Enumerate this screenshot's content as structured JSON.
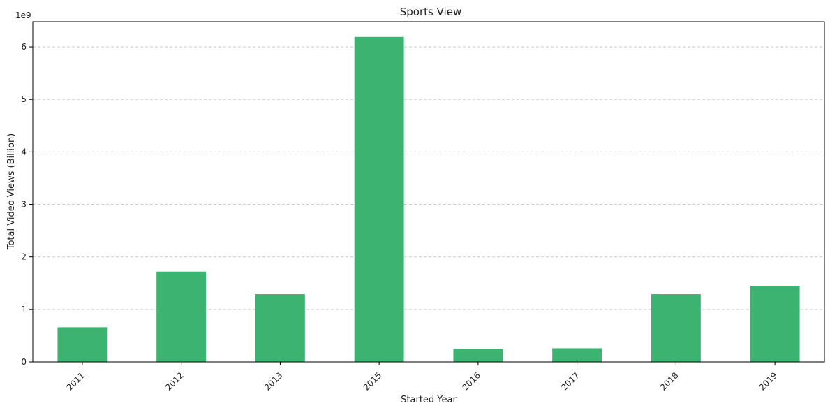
{
  "chart_data": {
    "type": "bar",
    "title": "Sports View",
    "xlabel": "Started Year",
    "ylabel": "Total Video Views (Billion)",
    "y_offset_label": "1e9",
    "categories": [
      "2011",
      "2012",
      "2013",
      "2015",
      "2016",
      "2017",
      "2018",
      "2019"
    ],
    "values": [
      0.66,
      1.72,
      1.29,
      6.19,
      0.25,
      0.26,
      1.29,
      1.45
    ],
    "ylim": [
      0,
      6.48
    ],
    "yticks": [
      0,
      1,
      2,
      3,
      4,
      5,
      6
    ],
    "ytick_labels": [
      "0",
      "1",
      "2",
      "3",
      "4",
      "5",
      "6"
    ],
    "xtick_rotation_deg": -45,
    "grid": "y-dashed",
    "bar_color": "#3cb371"
  }
}
